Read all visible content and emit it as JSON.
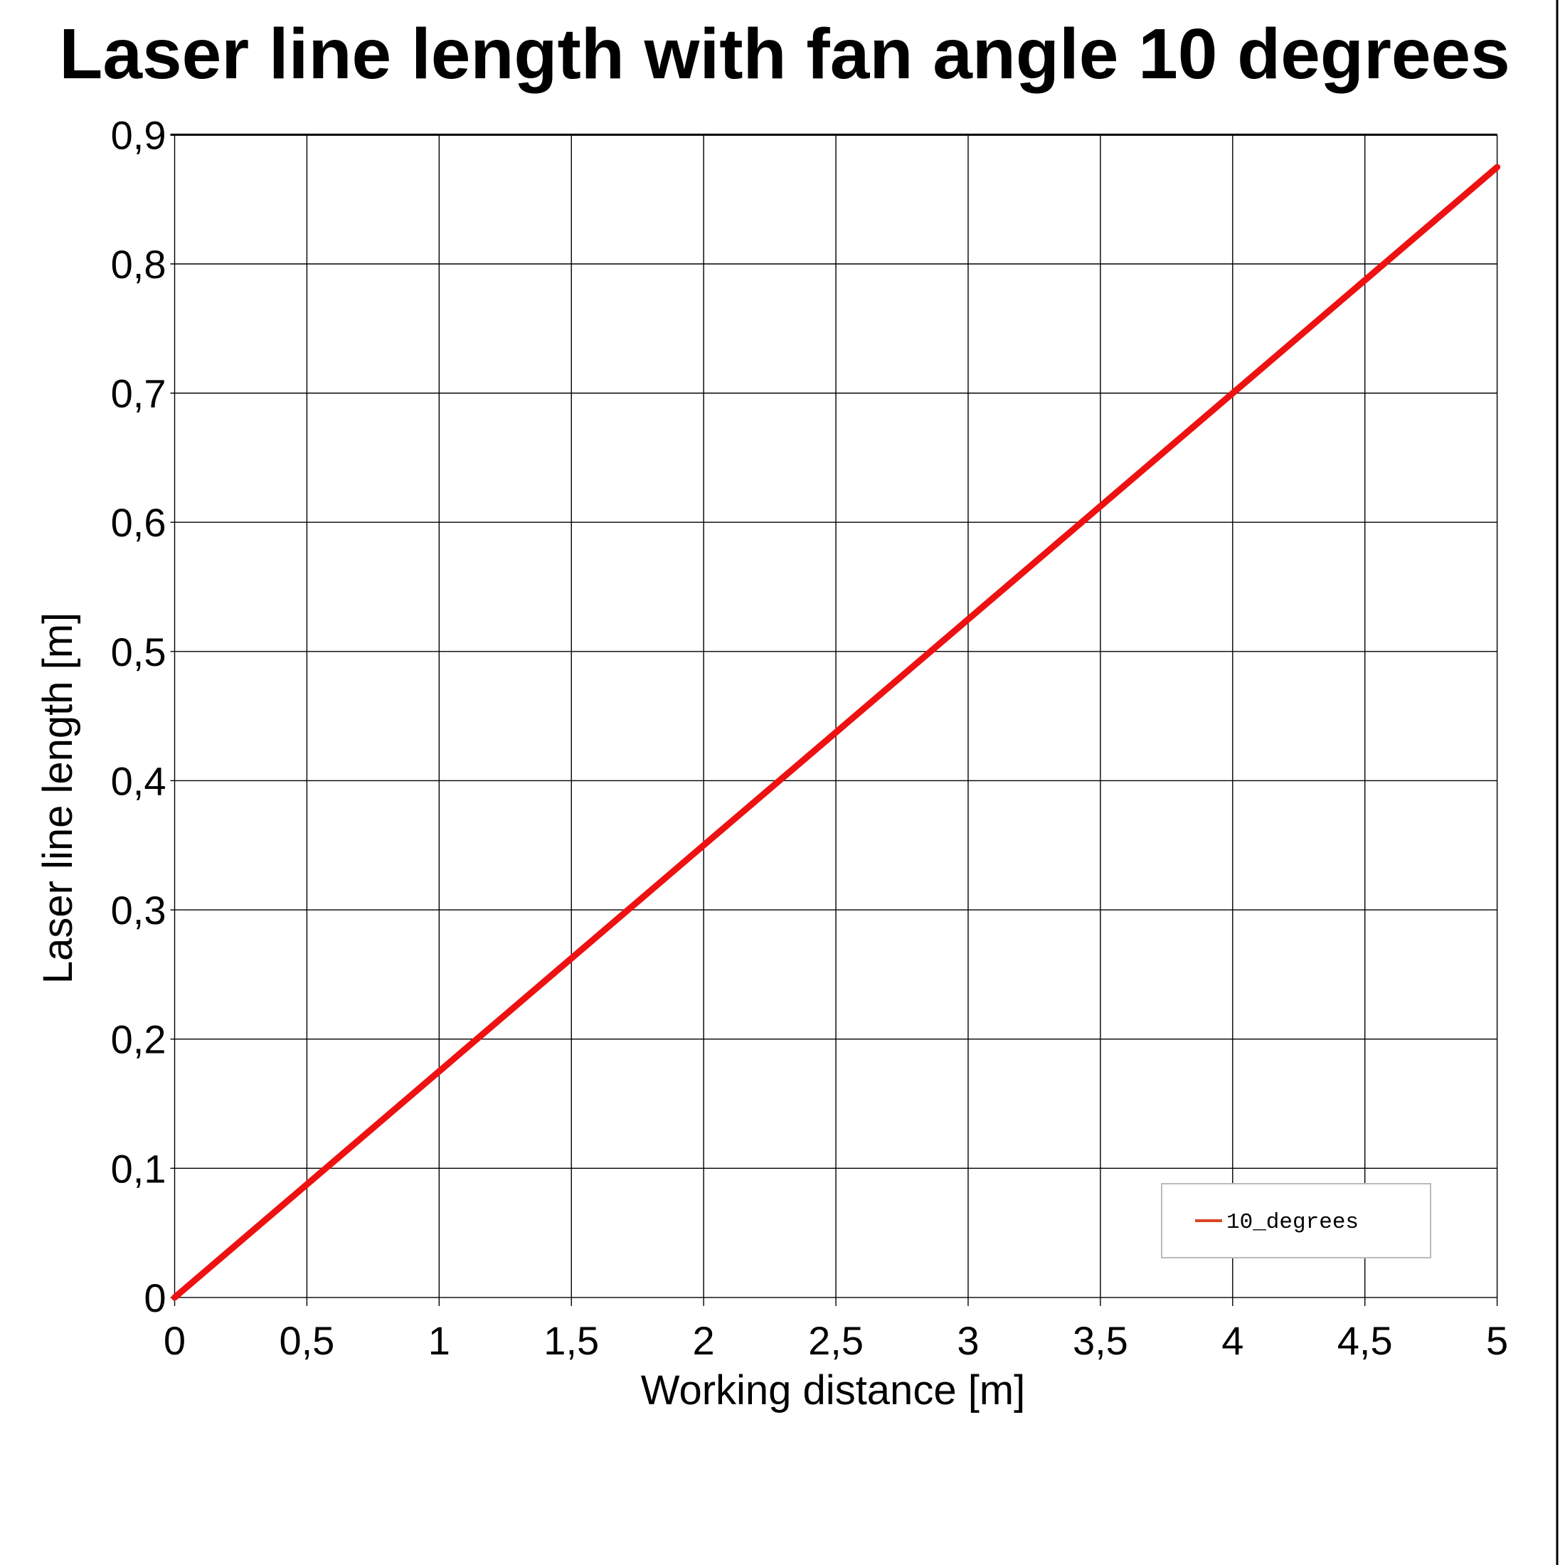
{
  "chart_data": {
    "type": "line",
    "title": "Laser line length with fan angle 10 degrees",
    "xlabel": "Working distance [m]",
    "ylabel": "Laser line length [m]",
    "xlim": [
      0,
      5
    ],
    "ylim": [
      0,
      0.9
    ],
    "x_ticks": [
      "0",
      "0,5",
      "1",
      "1,5",
      "2",
      "2,5",
      "3",
      "3,5",
      "4",
      "4,5",
      "5"
    ],
    "y_ticks": [
      "0",
      "0,1",
      "0,2",
      "0,3",
      "0,4",
      "0,5",
      "0,6",
      "0,7",
      "0,8",
      "0,9"
    ],
    "grid": true,
    "legend_placement": "bottom-right",
    "series": [
      {
        "name": "10_degrees",
        "color": "#ee1111",
        "legend_color": "#dd4422",
        "x": [
          0,
          0.5,
          1,
          1.5,
          2,
          2.5,
          3,
          3.5,
          4,
          4.5,
          5
        ],
        "y": [
          0,
          0.0875,
          0.175,
          0.2625,
          0.35,
          0.4374,
          0.5249,
          0.6124,
          0.6999,
          0.7874,
          0.8749
        ]
      }
    ]
  }
}
